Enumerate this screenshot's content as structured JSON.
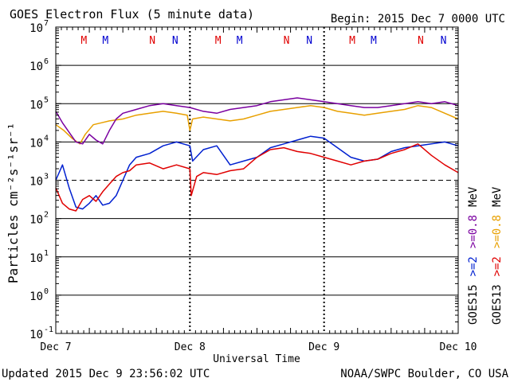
{
  "chart_data": {
    "type": "line",
    "title": "GOES Electron Flux (5 minute data)",
    "begin_label": "Begin: 2015 Dec 7 0000 UTC",
    "xlabel": "Universal Time",
    "ylabel": "Particles cm⁻²s⁻¹sr⁻¹",
    "x_unit": "days since 2015 Dec 7 0000 UTC",
    "xlim": [
      0,
      3
    ],
    "ylim_log10": [
      -1,
      7
    ],
    "y_ticks": [
      {
        "exp": 7,
        "label": "7"
      },
      {
        "exp": 6,
        "label": "6"
      },
      {
        "exp": 5,
        "label": "5"
      },
      {
        "exp": 4,
        "label": "4"
      },
      {
        "exp": 3,
        "label": "3"
      },
      {
        "exp": 2,
        "label": "2"
      },
      {
        "exp": 1,
        "label": "1"
      },
      {
        "exp": 0,
        "label": "0"
      },
      {
        "exp": -1,
        "label": "-1"
      }
    ],
    "y_tick_base": "10",
    "x_ticks": [
      {
        "x": 0,
        "label": "Dec 7"
      },
      {
        "x": 1,
        "label": "Dec 8"
      },
      {
        "x": 2,
        "label": "Dec 9"
      },
      {
        "x": 3,
        "label": "Dec 10"
      }
    ],
    "threshold_exp": 3,
    "markers": [
      {
        "x": 0.21,
        "label": "M",
        "color": "#e00000"
      },
      {
        "x": 0.37,
        "label": "M",
        "color": "#0000d0"
      },
      {
        "x": 0.72,
        "label": "N",
        "color": "#e00000"
      },
      {
        "x": 0.89,
        "label": "N",
        "color": "#0000d0"
      },
      {
        "x": 1.21,
        "label": "M",
        "color": "#e00000"
      },
      {
        "x": 1.37,
        "label": "M",
        "color": "#0000d0"
      },
      {
        "x": 1.72,
        "label": "N",
        "color": "#e00000"
      },
      {
        "x": 1.89,
        "label": "N",
        "color": "#0000d0"
      },
      {
        "x": 2.21,
        "label": "M",
        "color": "#e00000"
      },
      {
        "x": 2.37,
        "label": "M",
        "color": "#0000d0"
      },
      {
        "x": 2.72,
        "label": "N",
        "color": "#e00000"
      },
      {
        "x": 2.89,
        "label": "N",
        "color": "#0000d0"
      }
    ],
    "series": [
      {
        "name": "GOES13 >=0.8 MeV",
        "color": "#e8a000",
        "x": [
          0,
          0.06,
          0.12,
          0.18,
          0.22,
          0.28,
          0.34,
          0.4,
          0.5,
          0.6,
          0.7,
          0.8,
          0.9,
          0.98,
          1.0,
          1.02,
          1.1,
          1.2,
          1.3,
          1.4,
          1.5,
          1.6,
          1.7,
          1.8,
          1.9,
          2.0,
          2.1,
          2.2,
          2.3,
          2.4,
          2.5,
          2.6,
          2.7,
          2.8,
          2.9,
          3.0
        ],
        "y": [
          4.45,
          4.3,
          4.1,
          3.95,
          4.2,
          4.45,
          4.5,
          4.55,
          4.6,
          4.7,
          4.75,
          4.8,
          4.75,
          4.7,
          4.3,
          4.6,
          4.65,
          4.6,
          4.55,
          4.6,
          4.7,
          4.8,
          4.85,
          4.9,
          4.95,
          4.9,
          4.8,
          4.75,
          4.7,
          4.75,
          4.8,
          4.85,
          4.95,
          4.9,
          4.75,
          4.6
        ]
      },
      {
        "name": "GOES15 >=0.8 MeV",
        "color": "#7a00a0",
        "x": [
          0,
          0.05,
          0.1,
          0.15,
          0.2,
          0.25,
          0.3,
          0.35,
          0.4,
          0.45,
          0.5,
          0.6,
          0.7,
          0.8,
          0.9,
          1.0,
          1.1,
          1.2,
          1.3,
          1.4,
          1.5,
          1.6,
          1.7,
          1.8,
          1.9,
          2.0,
          2.1,
          2.2,
          2.3,
          2.4,
          2.5,
          2.6,
          2.7,
          2.8,
          2.9,
          3.0
        ],
        "y": [
          4.8,
          4.5,
          4.25,
          4.0,
          3.95,
          4.2,
          4.05,
          3.95,
          4.3,
          4.6,
          4.75,
          4.85,
          4.95,
          5.0,
          4.95,
          4.9,
          4.8,
          4.75,
          4.85,
          4.9,
          4.95,
          5.05,
          5.1,
          5.15,
          5.1,
          5.05,
          5.0,
          4.95,
          4.9,
          4.9,
          4.95,
          5.0,
          5.05,
          5.0,
          5.05,
          4.95
        ]
      },
      {
        "name": "GOES15 >=2 MeV",
        "color": "#0020d0",
        "x": [
          0,
          0.05,
          0.1,
          0.15,
          0.2,
          0.25,
          0.3,
          0.35,
          0.4,
          0.45,
          0.5,
          0.55,
          0.6,
          0.7,
          0.8,
          0.9,
          1.0,
          1.02,
          1.1,
          1.2,
          1.3,
          1.4,
          1.5,
          1.6,
          1.7,
          1.8,
          1.9,
          2.0,
          2.1,
          2.2,
          2.3,
          2.4,
          2.5,
          2.6,
          2.7,
          2.8,
          2.9,
          3.0
        ],
        "y": [
          3.0,
          3.4,
          2.8,
          2.3,
          2.25,
          2.4,
          2.6,
          2.35,
          2.4,
          2.6,
          3.0,
          3.4,
          3.6,
          3.7,
          3.9,
          4.0,
          3.9,
          3.5,
          3.8,
          3.9,
          3.4,
          3.5,
          3.6,
          3.85,
          3.95,
          4.05,
          4.15,
          4.1,
          3.85,
          3.6,
          3.5,
          3.55,
          3.75,
          3.85,
          3.9,
          3.95,
          4.0,
          3.9
        ]
      },
      {
        "name": "GOES13 >=2 MeV",
        "color": "#e00000",
        "x": [
          0,
          0.05,
          0.1,
          0.15,
          0.2,
          0.25,
          0.3,
          0.35,
          0.4,
          0.45,
          0.5,
          0.55,
          0.6,
          0.7,
          0.8,
          0.9,
          1.0,
          1.01,
          1.05,
          1.1,
          1.2,
          1.3,
          1.4,
          1.5,
          1.6,
          1.7,
          1.8,
          1.9,
          2.0,
          2.05,
          2.1,
          2.2,
          2.3,
          2.4,
          2.5,
          2.6,
          2.7,
          2.8,
          2.9,
          3.0
        ],
        "y": [
          2.8,
          2.4,
          2.25,
          2.2,
          2.5,
          2.6,
          2.45,
          2.7,
          2.9,
          3.1,
          3.2,
          3.25,
          3.4,
          3.45,
          3.3,
          3.4,
          3.3,
          2.6,
          3.1,
          3.2,
          3.15,
          3.25,
          3.3,
          3.6,
          3.8,
          3.85,
          3.75,
          3.7,
          3.6,
          3.55,
          3.5,
          3.4,
          3.5,
          3.55,
          3.7,
          3.8,
          3.95,
          3.65,
          3.4,
          3.2
        ]
      }
    ],
    "legend": [
      {
        "text": "GOES15",
        "color": "#000000"
      },
      {
        "text": "GOES13",
        "color": "#000000"
      },
      {
        "text": ">=2",
        "color": "#0020d0"
      },
      {
        "text": ">=2",
        "color": "#e00000"
      },
      {
        "text": ">=0.8",
        "color": "#7a00a0"
      },
      {
        "text": ">=0.8",
        "color": "#e8a000"
      },
      {
        "text": "MeV",
        "color": "#000000"
      },
      {
        "text": "MeV",
        "color": "#000000"
      }
    ]
  },
  "footer": {
    "updated": "Updated 2015 Dec  9 23:56:02 UTC",
    "source": "NOAA/SWPC Boulder, CO USA"
  }
}
